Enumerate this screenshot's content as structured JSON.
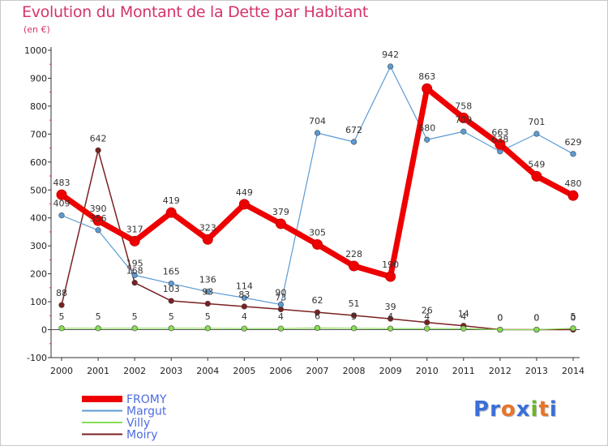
{
  "title": "Evolution du Montant de la Dette par Habitant",
  "subtitle": "(en €)",
  "logo": {
    "text": "Proxiti",
    "letters": [
      "P",
      "r",
      "o",
      "x",
      "i",
      "t",
      "i"
    ],
    "colors": [
      "#3a6fd8",
      "#3a6fd8",
      "#e8742a",
      "#3a6fd8",
      "#6cb52d",
      "#e8742a",
      "#3a6fd8"
    ]
  },
  "chart_data": {
    "type": "line",
    "x": [
      "2000",
      "2001",
      "2002",
      "2003",
      "2004",
      "2005",
      "2006",
      "2007",
      "2008",
      "2009",
      "2010",
      "2011",
      "2012",
      "2013",
      "2014"
    ],
    "ylim": [
      -100,
      1000
    ],
    "yticks": [
      "-100",
      "0",
      "100",
      "200",
      "300",
      "400",
      "500",
      "600",
      "700",
      "800",
      "900",
      "1000"
    ],
    "ytick_values": [
      -100,
      0,
      100,
      200,
      300,
      400,
      500,
      600,
      700,
      800,
      900,
      1000
    ],
    "grid": false,
    "legend_position": "bottom-left",
    "series": [
      {
        "name": "FROMY",
        "color": "#ee0000",
        "values": [
          483,
          390,
          317,
          419,
          323,
          449,
          379,
          305,
          228,
          190,
          863,
          758,
          663,
          549,
          480
        ],
        "labels": [
          "483",
          "390",
          "317",
          "419",
          "323",
          "449",
          "379",
          "305",
          "228",
          "190",
          "863",
          "758",
          "663",
          "549",
          "480"
        ]
      },
      {
        "name": "Margut",
        "color": "#5b9bd5",
        "values": [
          409,
          356,
          195,
          165,
          136,
          114,
          90,
          704,
          672,
          942,
          680,
          709,
          638,
          701,
          629
        ],
        "labels": [
          "409",
          "356",
          "195",
          "165",
          "136",
          "114",
          "90",
          "704",
          "672",
          "942",
          "680",
          "709",
          "638",
          "701",
          "629"
        ]
      },
      {
        "name": "Villy",
        "color": "#88dd55",
        "values": [
          5,
          5,
          5,
          5,
          5,
          4,
          4,
          6,
          5,
          4,
          4,
          4,
          0,
          0,
          5
        ],
        "labels": [
          "5",
          "5",
          "5",
          "5",
          "5",
          "4",
          "4",
          "6",
          "5",
          "4",
          "4",
          "4",
          "0",
          "0",
          "5"
        ]
      },
      {
        "name": "Moiry",
        "color": "#7b2020",
        "values": [
          88,
          642,
          168,
          103,
          93,
          83,
          73,
          62,
          51,
          39,
          26,
          14,
          0,
          0,
          0
        ],
        "labels": [
          "88",
          "642",
          "168",
          "103",
          "93",
          "83",
          "73",
          "62",
          "51",
          "39",
          "26",
          "14",
          "0",
          "0",
          "0"
        ]
      }
    ]
  }
}
